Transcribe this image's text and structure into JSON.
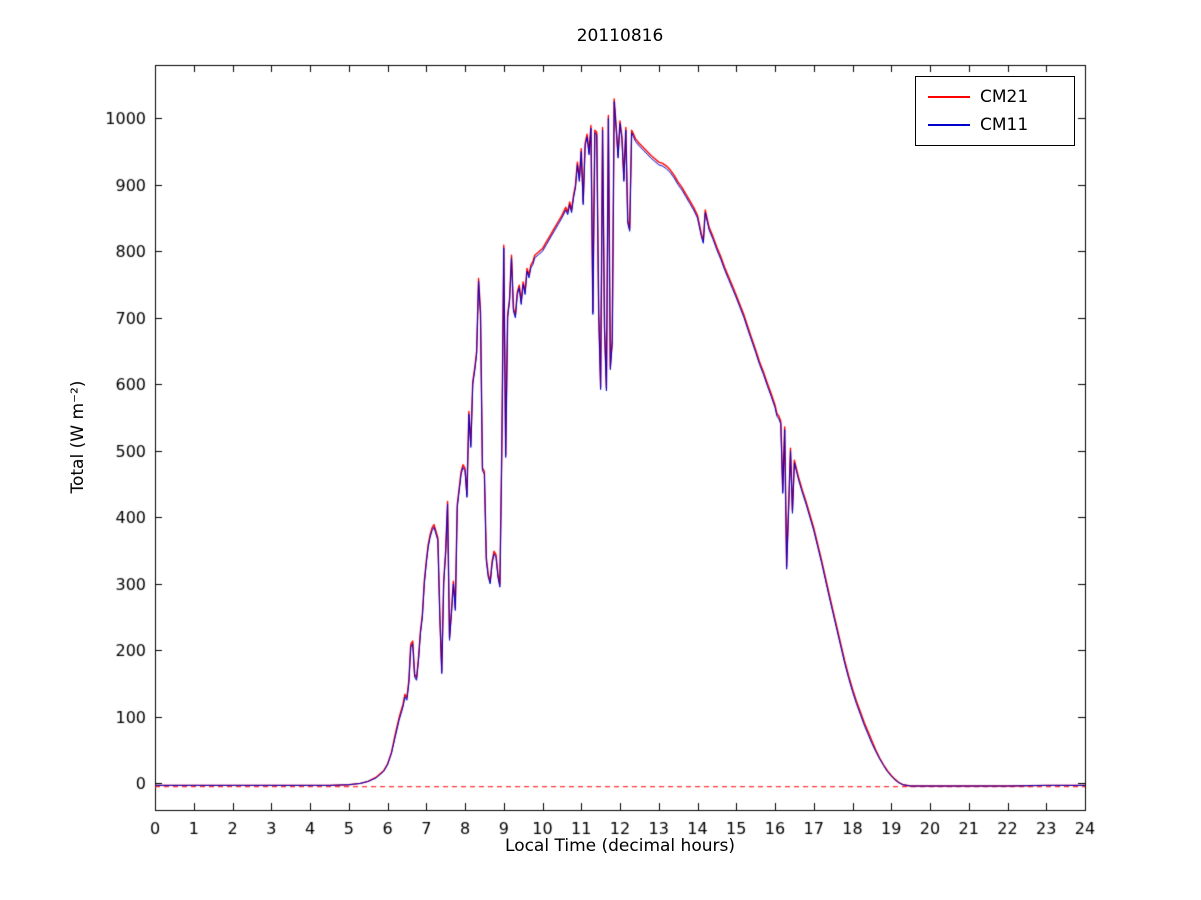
{
  "chart_data": {
    "type": "line",
    "title": "20110816",
    "xlabel": "Local Time (decimal hours)",
    "ylabel": "Total (W m⁻²)",
    "xlim": [
      0,
      24
    ],
    "ylim": [
      -40,
      1080
    ],
    "x_ticks": [
      0,
      1,
      2,
      3,
      4,
      5,
      6,
      7,
      8,
      9,
      10,
      11,
      12,
      13,
      14,
      15,
      16,
      17,
      18,
      19,
      20,
      21,
      22,
      23,
      24
    ],
    "y_ticks": [
      0,
      100,
      200,
      300,
      400,
      500,
      600,
      700,
      800,
      900,
      1000
    ],
    "grid": false,
    "legend_position": "top-right",
    "background": "#ffffff",
    "axis_color": "#000000",
    "zero_line": {
      "y": -5,
      "color": "#ff0000",
      "style": "dashed"
    },
    "series": [
      {
        "name": "CM21",
        "color": "#ff0000"
      },
      {
        "name": "CM11",
        "color": "#0000cc"
      }
    ],
    "points_format": [
      "time",
      "CM21",
      "CM11"
    ],
    "points": [
      [
        0,
        -3,
        -3
      ],
      [
        1,
        -3,
        -3
      ],
      [
        2,
        -3,
        -3
      ],
      [
        3,
        -3,
        -3
      ],
      [
        4,
        -3,
        -3
      ],
      [
        4.5,
        -3,
        -3
      ],
      [
        5,
        -2,
        -2
      ],
      [
        5.3,
        0,
        0
      ],
      [
        5.5,
        3,
        3
      ],
      [
        5.7,
        9,
        8
      ],
      [
        5.9,
        19,
        18
      ],
      [
        6,
        29,
        28
      ],
      [
        6.1,
        46,
        45
      ],
      [
        6.2,
        74,
        70
      ],
      [
        6.3,
        99,
        95
      ],
      [
        6.4,
        119,
        115
      ],
      [
        6.45,
        134,
        130
      ],
      [
        6.5,
        129,
        125
      ],
      [
        6.55,
        154,
        150
      ],
      [
        6.6,
        209,
        205
      ],
      [
        6.65,
        214,
        210
      ],
      [
        6.7,
        164,
        160
      ],
      [
        6.75,
        159,
        155
      ],
      [
        6.8,
        189,
        185
      ],
      [
        6.85,
        229,
        225
      ],
      [
        6.9,
        254,
        250
      ],
      [
        6.95,
        304,
        300
      ],
      [
        7,
        334,
        330
      ],
      [
        7.05,
        359,
        355
      ],
      [
        7.1,
        374,
        370
      ],
      [
        7.15,
        384,
        380
      ],
      [
        7.2,
        389,
        385
      ],
      [
        7.25,
        379,
        375
      ],
      [
        7.3,
        369,
        365
      ],
      [
        7.35,
        254,
        250
      ],
      [
        7.4,
        169,
        165
      ],
      [
        7.45,
        304,
        300
      ],
      [
        7.5,
        349,
        345
      ],
      [
        7.55,
        424,
        420
      ],
      [
        7.6,
        219,
        215
      ],
      [
        7.65,
        259,
        255
      ],
      [
        7.7,
        304,
        300
      ],
      [
        7.75,
        264,
        260
      ],
      [
        7.8,
        419,
        415
      ],
      [
        7.85,
        444,
        440
      ],
      [
        7.9,
        469,
        465
      ],
      [
        7.95,
        479,
        475
      ],
      [
        8,
        474,
        470
      ],
      [
        8.05,
        434,
        430
      ],
      [
        8.1,
        559,
        555
      ],
      [
        8.15,
        509,
        505
      ],
      [
        8.2,
        604,
        600
      ],
      [
        8.25,
        624,
        620
      ],
      [
        8.3,
        649,
        645
      ],
      [
        8.35,
        759,
        755
      ],
      [
        8.4,
        709,
        705
      ],
      [
        8.45,
        474,
        470
      ],
      [
        8.5,
        469,
        465
      ],
      [
        8.55,
        339,
        335
      ],
      [
        8.6,
        314,
        310
      ],
      [
        8.65,
        304,
        300
      ],
      [
        8.7,
        334,
        330
      ],
      [
        8.75,
        349,
        345
      ],
      [
        8.8,
        344,
        340
      ],
      [
        8.85,
        314,
        310
      ],
      [
        8.9,
        299,
        295
      ],
      [
        8.95,
        504,
        500
      ],
      [
        9,
        809,
        805
      ],
      [
        9.05,
        494,
        490
      ],
      [
        9.1,
        704,
        700
      ],
      [
        9.15,
        729,
        725
      ],
      [
        9.2,
        794,
        790
      ],
      [
        9.25,
        714,
        710
      ],
      [
        9.3,
        704,
        700
      ],
      [
        9.35,
        739,
        735
      ],
      [
        9.4,
        749,
        745
      ],
      [
        9.45,
        724,
        720
      ],
      [
        9.5,
        754,
        750
      ],
      [
        9.55,
        739,
        735
      ],
      [
        9.6,
        774,
        770
      ],
      [
        9.65,
        764,
        760
      ],
      [
        9.7,
        779,
        775
      ],
      [
        9.75,
        784,
        780
      ],
      [
        9.8,
        794,
        790
      ],
      [
        9.9,
        799,
        795
      ],
      [
        10,
        804,
        800
      ],
      [
        10.1,
        814,
        810
      ],
      [
        10.2,
        824,
        820
      ],
      [
        10.3,
        834,
        830
      ],
      [
        10.4,
        844,
        840
      ],
      [
        10.5,
        854,
        850
      ],
      [
        10.6,
        866,
        862
      ],
      [
        10.65,
        859,
        855
      ],
      [
        10.7,
        874,
        870
      ],
      [
        10.75,
        862,
        858
      ],
      [
        10.8,
        884,
        880
      ],
      [
        10.85,
        899,
        895
      ],
      [
        10.9,
        934,
        930
      ],
      [
        10.95,
        909,
        905
      ],
      [
        11,
        954,
        950
      ],
      [
        11.05,
        874,
        870
      ],
      [
        11.1,
        962,
        958
      ],
      [
        11.15,
        976,
        972
      ],
      [
        11.2,
        949,
        945
      ],
      [
        11.25,
        989,
        985
      ],
      [
        11.3,
        709,
        705
      ],
      [
        11.35,
        982,
        978
      ],
      [
        11.4,
        979,
        975
      ],
      [
        11.45,
        709,
        705
      ],
      [
        11.5,
        596,
        592
      ],
      [
        11.55,
        986,
        982
      ],
      [
        11.6,
        686,
        682
      ],
      [
        11.65,
        594,
        590
      ],
      [
        11.7,
        1004,
        1000
      ],
      [
        11.75,
        626,
        622
      ],
      [
        11.8,
        666,
        662
      ],
      [
        11.85,
        1029,
        1025
      ],
      [
        11.9,
        989,
        985
      ],
      [
        11.95,
        944,
        940
      ],
      [
        12,
        996,
        992
      ],
      [
        12.05,
        972,
        968
      ],
      [
        12.1,
        909,
        905
      ],
      [
        12.15,
        986,
        982
      ],
      [
        12.2,
        846,
        842
      ],
      [
        12.25,
        834,
        830
      ],
      [
        12.3,
        982,
        978
      ],
      [
        12.35,
        976,
        972
      ],
      [
        12.4,
        969,
        965
      ],
      [
        12.5,
        962,
        958
      ],
      [
        12.6,
        956,
        952
      ],
      [
        12.7,
        950,
        946
      ],
      [
        12.8,
        944,
        940
      ],
      [
        12.9,
        939,
        935
      ],
      [
        13,
        934,
        930
      ],
      [
        13.1,
        932,
        928
      ],
      [
        13.2,
        928,
        924
      ],
      [
        13.3,
        922,
        918
      ],
      [
        13.4,
        914,
        910
      ],
      [
        13.5,
        904,
        900
      ],
      [
        13.6,
        896,
        892
      ],
      [
        13.7,
        886,
        882
      ],
      [
        13.8,
        876,
        872
      ],
      [
        13.9,
        866,
        862
      ],
      [
        14,
        854,
        850
      ],
      [
        14.1,
        826,
        822
      ],
      [
        14.15,
        816,
        812
      ],
      [
        14.2,
        862,
        858
      ],
      [
        14.25,
        849,
        845
      ],
      [
        14.3,
        836,
        832
      ],
      [
        14.4,
        822,
        818
      ],
      [
        14.5,
        806,
        802
      ],
      [
        14.6,
        792,
        788
      ],
      [
        14.7,
        776,
        772
      ],
      [
        14.8,
        762,
        758
      ],
      [
        14.9,
        748,
        744
      ],
      [
        15,
        734,
        730
      ],
      [
        15.1,
        719,
        715
      ],
      [
        15.2,
        704,
        700
      ],
      [
        15.3,
        686,
        682
      ],
      [
        15.4,
        669,
        665
      ],
      [
        15.5,
        652,
        648
      ],
      [
        15.6,
        634,
        630
      ],
      [
        15.7,
        619,
        615
      ],
      [
        15.8,
        602,
        598
      ],
      [
        15.9,
        586,
        582
      ],
      [
        16,
        569,
        565
      ],
      [
        16.05,
        556,
        552
      ],
      [
        16.1,
        552,
        548
      ],
      [
        16.15,
        544,
        540
      ],
      [
        16.2,
        440,
        436
      ],
      [
        16.25,
        536,
        532
      ],
      [
        16.3,
        326,
        322
      ],
      [
        16.35,
        414,
        410
      ],
      [
        16.4,
        504,
        500
      ],
      [
        16.45,
        410,
        406
      ],
      [
        16.5,
        486,
        482
      ],
      [
        16.55,
        474,
        470
      ],
      [
        16.6,
        462,
        458
      ],
      [
        16.7,
        442,
        438
      ],
      [
        16.8,
        424,
        420
      ],
      [
        16.9,
        404,
        400
      ],
      [
        17,
        384,
        380
      ],
      [
        17.1,
        360,
        356
      ],
      [
        17.2,
        336,
        332
      ],
      [
        17.3,
        310,
        306
      ],
      [
        17.4,
        284,
        280
      ],
      [
        17.5,
        259,
        255
      ],
      [
        17.6,
        234,
        230
      ],
      [
        17.7,
        209,
        205
      ],
      [
        17.8,
        184,
        180
      ],
      [
        17.9,
        162,
        158
      ],
      [
        18,
        142,
        138
      ],
      [
        18.1,
        124,
        120
      ],
      [
        18.2,
        108,
        104
      ],
      [
        18.3,
        92,
        88
      ],
      [
        18.4,
        78,
        74
      ],
      [
        18.5,
        64,
        60
      ],
      [
        18.6,
        50,
        48
      ],
      [
        18.7,
        38,
        37
      ],
      [
        18.8,
        28,
        27
      ],
      [
        18.9,
        19,
        18
      ],
      [
        19,
        12,
        11
      ],
      [
        19.1,
        6,
        5
      ],
      [
        19.2,
        1,
        1
      ],
      [
        19.3,
        -2,
        -2
      ],
      [
        19.5,
        -4,
        -4
      ],
      [
        20,
        -4,
        -4
      ],
      [
        20.5,
        -4,
        -4
      ],
      [
        21,
        -4,
        -4
      ],
      [
        22,
        -4,
        -4
      ],
      [
        23,
        -3,
        -3
      ],
      [
        24,
        -3,
        -3
      ]
    ]
  }
}
